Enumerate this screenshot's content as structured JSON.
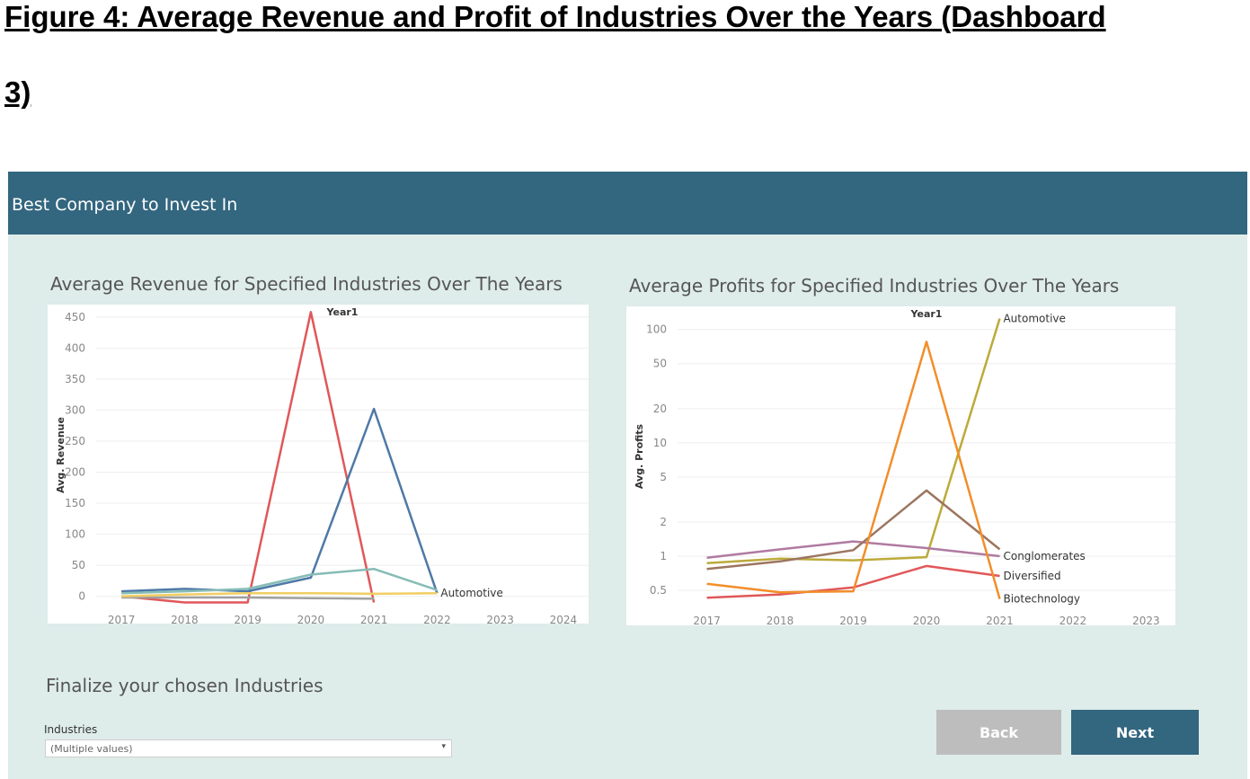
{
  "figure_caption": {
    "line1": "Figure 4: Average Revenue and Profit of Industries Over the Years (Dashboard",
    "line2": "3)"
  },
  "dashboard": {
    "title": "Best Company to Invest In",
    "section_title": "Finalize your chosen Industries",
    "filter": {
      "label": "Industries",
      "value": "(Multiple values)"
    },
    "buttons": {
      "back": "Back",
      "next": "Next"
    },
    "colors": {
      "header": "#33667f",
      "background": "#deecea",
      "back_button": "#bdbdbd",
      "next_button": "#33667f"
    }
  },
  "charts": {
    "revenue": {
      "title": "Average Revenue for Specified Industries Over The Years"
    },
    "profits": {
      "title": "Average Profits for Specified Industries Over The Years"
    }
  },
  "chart_data": [
    {
      "type": "line",
      "title": "Average Revenue for Specified Industries Over The Years",
      "xlabel": "Year1",
      "ylabel": "Avg. Revenue",
      "x": [
        2017,
        2018,
        2019,
        2020,
        2021,
        2022,
        2023,
        2024
      ],
      "xlim": [
        2016.6,
        2024.4
      ],
      "ylim": [
        -15,
        470
      ],
      "yticks": [
        0,
        50,
        100,
        150,
        200,
        250,
        300,
        350,
        400,
        450
      ],
      "grid": true,
      "series": [
        {
          "name": "",
          "color": "#e15759",
          "x": [
            2017,
            2018,
            2019,
            2020,
            2021
          ],
          "values": [
            0,
            -10,
            -10,
            458,
            -10
          ]
        },
        {
          "name": "",
          "color": "#4e79a7",
          "x": [
            2017,
            2018,
            2019,
            2020,
            2021,
            2022
          ],
          "values": [
            8,
            12,
            8,
            30,
            302,
            5
          ]
        },
        {
          "name": "",
          "color": "#86bcb6",
          "x": [
            2017,
            2018,
            2019,
            2020,
            2021,
            2022
          ],
          "values": [
            5,
            8,
            12,
            35,
            44,
            10
          ]
        },
        {
          "name": "",
          "color": "#a0a0a0",
          "x": [
            2017,
            2018,
            2019,
            2020,
            2021
          ],
          "values": [
            -2,
            -2,
            -2,
            -3,
            -4
          ]
        },
        {
          "name": "Automotive",
          "color": "#f1ce63",
          "x": [
            2017,
            2018,
            2019,
            2020,
            2021,
            2022
          ],
          "values": [
            0,
            3,
            5,
            5,
            4,
            5
          ]
        }
      ]
    },
    {
      "type": "line",
      "title": "Average Profits for Specified Industries Over The Years",
      "xlabel": "Year1",
      "ylabel": "Avg. Profits",
      "scale": "log",
      "x": [
        2017,
        2018,
        2019,
        2020,
        2021,
        2022,
        2023
      ],
      "xlim": [
        2016.6,
        2023.4
      ],
      "ylim": [
        0.36,
        160
      ],
      "yticks": [
        0.5,
        1,
        2,
        5,
        10,
        20,
        50,
        100
      ],
      "grid": true,
      "series": [
        {
          "name": "Automotive",
          "color": "#bcaa3b",
          "x": [
            2017,
            2018,
            2019,
            2020,
            2021
          ],
          "values": [
            0.87,
            0.95,
            0.92,
            0.98,
            125
          ]
        },
        {
          "name": "Conglomerates",
          "color": "#b07aa1",
          "x": [
            2017,
            2018,
            2019,
            2020,
            2021
          ],
          "values": [
            0.97,
            1.15,
            1.35,
            1.18,
            1.0
          ]
        },
        {
          "name": "",
          "color": "#9c755f",
          "x": [
            2017,
            2018,
            2019,
            2020,
            2021
          ],
          "values": [
            0.77,
            0.9,
            1.13,
            3.8,
            1.15
          ]
        },
        {
          "name": "Diversified",
          "color": "#e15759",
          "x": [
            2017,
            2018,
            2019,
            2020,
            2021
          ],
          "values": [
            0.43,
            0.46,
            0.53,
            0.82,
            0.67
          ]
        },
        {
          "name": "Biotechnology",
          "color": "#f28e2b",
          "x": [
            2017,
            2018,
            2019,
            2020,
            2021
          ],
          "values": [
            0.57,
            0.48,
            0.49,
            78,
            0.42
          ]
        }
      ]
    }
  ]
}
